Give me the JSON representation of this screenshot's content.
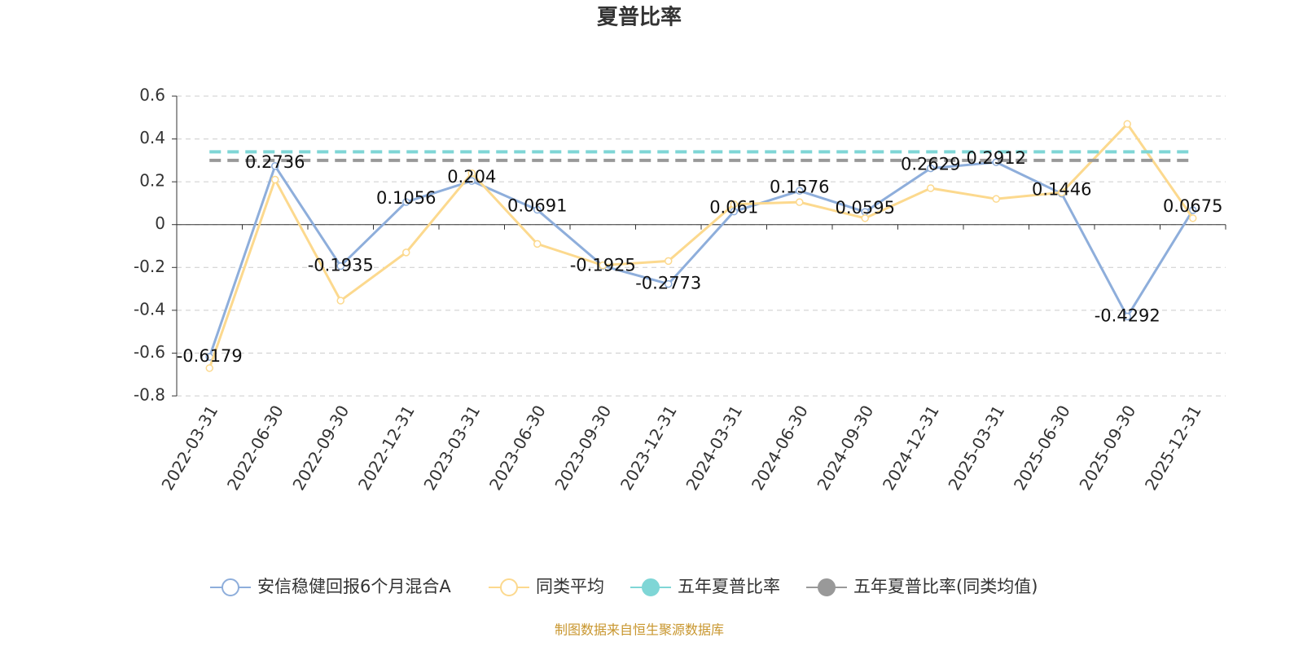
{
  "chart_data": {
    "type": "line",
    "title": "夏普比率",
    "categories": [
      "2022-03-31",
      "2022-06-30",
      "2022-09-30",
      "2022-12-31",
      "2023-03-31",
      "2023-06-30",
      "2023-09-30",
      "2023-12-31",
      "2024-03-31",
      "2024-06-30",
      "2024-09-30",
      "2024-12-31",
      "2025-03-31",
      "2025-06-30",
      "2025-09-30",
      "2025-12-31"
    ],
    "series": [
      {
        "name": "安信稳健回报6个月混合A",
        "color": "#8eaedb",
        "labels": true,
        "marker": "hollow",
        "values": [
          -0.6179,
          0.2736,
          -0.1935,
          0.1056,
          0.204,
          0.0691,
          -0.1925,
          -0.2773,
          0.061,
          0.1576,
          0.0595,
          0.2629,
          0.2912,
          0.1446,
          -0.4292,
          0.0675
        ]
      },
      {
        "name": "同类平均",
        "color": "#fcd98e",
        "labels": false,
        "marker": "hollow",
        "values": [
          -0.67,
          0.21,
          -0.355,
          -0.13,
          0.24,
          -0.09,
          -0.19,
          -0.17,
          0.095,
          0.105,
          0.03,
          0.17,
          0.12,
          0.15,
          0.47,
          0.03
        ]
      },
      {
        "name": "五年夏普比率",
        "color": "#7fd6d6",
        "labels": false,
        "marker": "filled",
        "dashed": true,
        "values": [
          0.34,
          0.34,
          0.34,
          0.34,
          0.34,
          0.34,
          0.34,
          0.34,
          0.34,
          0.34,
          0.34,
          0.34,
          0.34,
          0.34,
          0.34,
          0.34
        ]
      },
      {
        "name": "五年夏普比率(同类均值)",
        "color": "#999999",
        "labels": false,
        "marker": "filled",
        "dashed": true,
        "values": [
          0.3,
          0.3,
          0.3,
          0.3,
          0.3,
          0.3,
          0.3,
          0.3,
          0.3,
          0.3,
          0.3,
          0.3,
          0.3,
          0.3,
          0.3,
          0.3
        ]
      }
    ],
    "ylim": [
      -0.8,
      0.6
    ],
    "yticks": [
      -0.8,
      -0.6,
      -0.4,
      -0.2,
      0,
      0.2,
      0.4,
      0.6
    ],
    "grid": true,
    "legend": "bottom",
    "source": "制图数据来自恒生聚源数据库"
  }
}
